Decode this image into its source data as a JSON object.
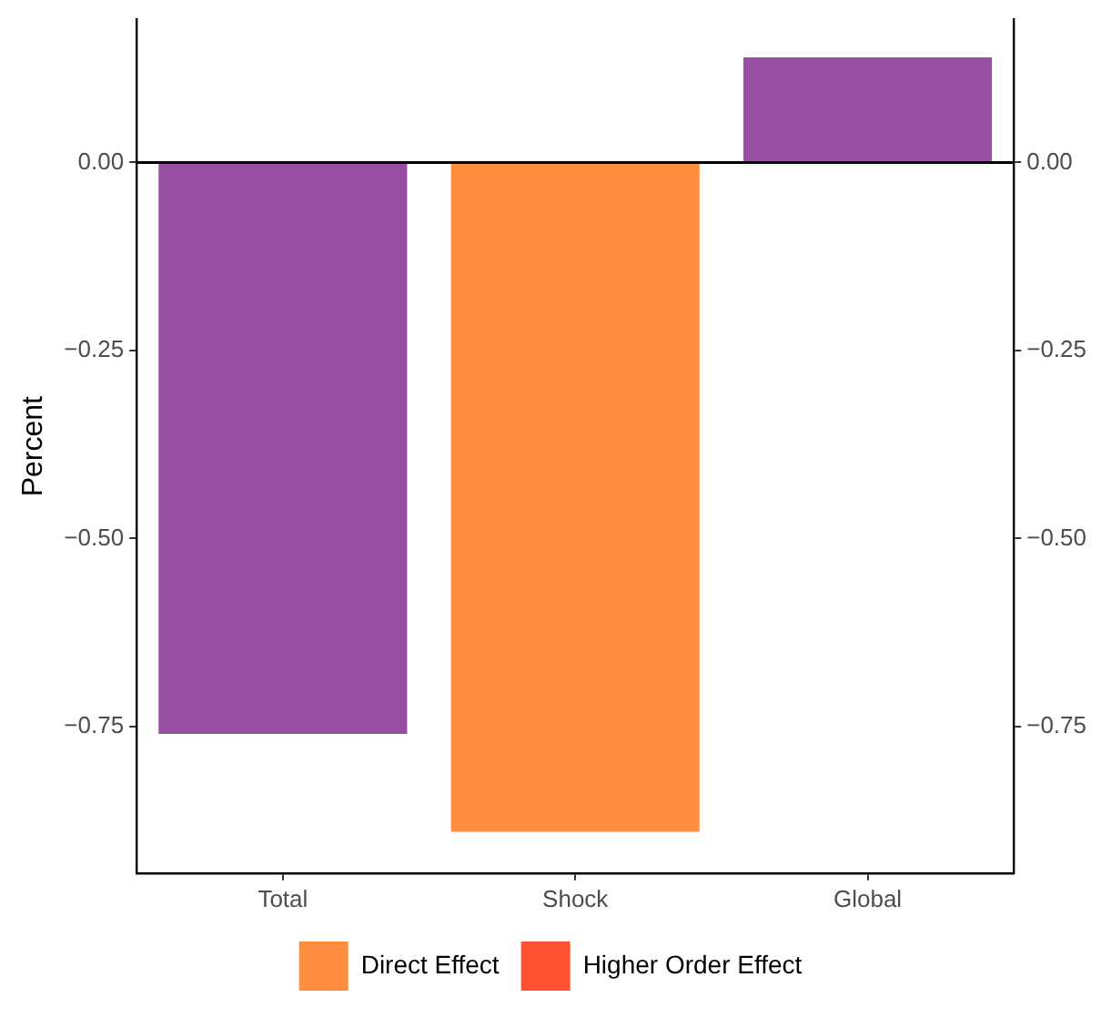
{
  "chart_data": {
    "type": "bar",
    "ylabel": "Percent",
    "categories": [
      "Total",
      "Shock",
      "Global"
    ],
    "stacked": true,
    "series": [
      {
        "color": "#984ea3",
        "values": [
          -0.76,
          null,
          0.14
        ]
      },
      {
        "name": "Direct Effect",
        "color": "#ff8f3f",
        "values": [
          null,
          -0.89,
          null
        ]
      },
      {
        "name": "Higher Order Effect",
        "color": "#ff5233",
        "values": [
          null,
          0,
          null
        ]
      }
    ],
    "ylim": [
      -0.945,
      0.19
    ],
    "yticks": [
      {
        "value": 0,
        "label": "0.00"
      },
      {
        "value": -0.25,
        "label": "−0.25"
      },
      {
        "value": -0.5,
        "label": "−0.50"
      },
      {
        "value": -0.75,
        "label": "−0.75"
      }
    ],
    "y2lim": [
      -0.945,
      0.19
    ],
    "y2ticks": [
      {
        "value": 0,
        "label": "0.00"
      },
      {
        "value": -0.25,
        "label": "−0.25"
      },
      {
        "value": -0.5,
        "label": "−0.50"
      },
      {
        "value": -0.75,
        "label": "−0.75"
      }
    ],
    "ref_lines": [
      {
        "axis": "y",
        "value": 0,
        "color": "#000000"
      }
    ],
    "grid": false,
    "legend": "bottom"
  }
}
